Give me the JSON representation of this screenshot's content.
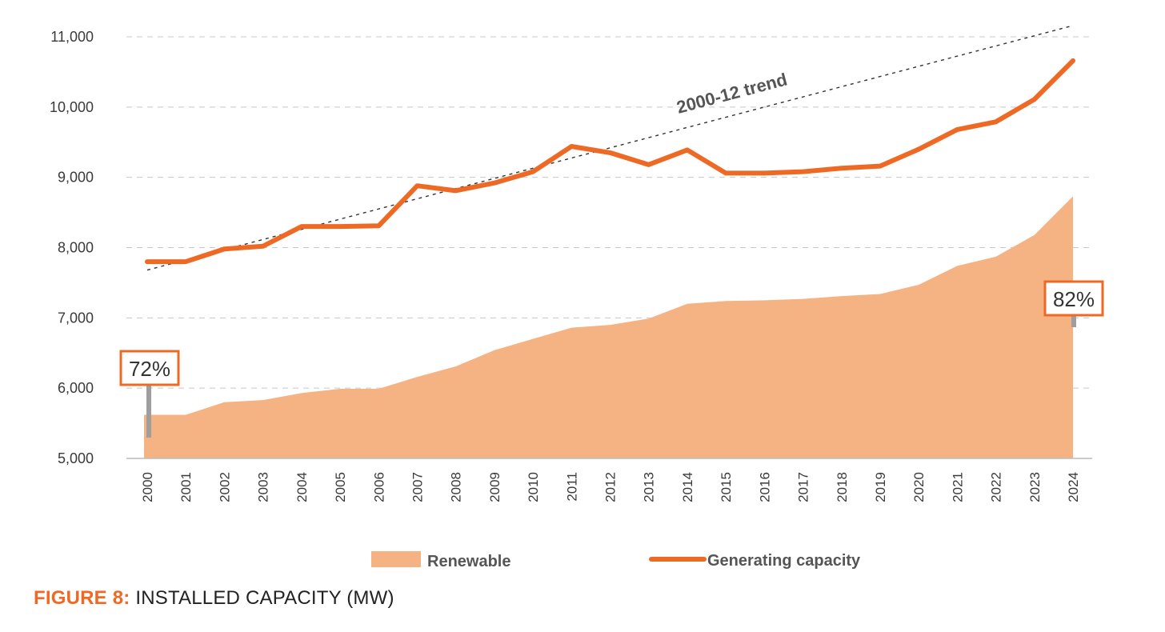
{
  "colors": {
    "accent": "#ee6a24",
    "renewable_fill": "#f5b283",
    "grid": "#c8c8c8",
    "trend": "#333333",
    "marker": "#9e9e9e"
  },
  "caption": {
    "prefix": "FIGURE 8:",
    "text": "INSTALLED CAPACITY (MW)"
  },
  "chart_data": {
    "type": "line",
    "x": [
      2000,
      2001,
      2002,
      2003,
      2004,
      2005,
      2006,
      2007,
      2008,
      2009,
      2010,
      2011,
      2012,
      2013,
      2014,
      2015,
      2016,
      2017,
      2018,
      2019,
      2020,
      2021,
      2022,
      2023,
      2024
    ],
    "x_tick_labels": [
      "2000",
      "2001",
      "2002",
      "2003",
      "2004",
      "2005",
      "2006",
      "2007",
      "2008",
      "2009",
      "2010",
      "2011",
      "2012",
      "2013",
      "2014",
      "2015",
      "2016",
      "2017",
      "2018",
      "2019",
      "2020",
      "2021",
      "2022",
      "2023",
      "2024"
    ],
    "ylim": [
      5000,
      11000
    ],
    "y_ticks": [
      5000,
      6000,
      7000,
      8000,
      9000,
      10000,
      11000
    ],
    "y_tick_labels": [
      "5,000",
      "6,000",
      "7,000",
      "8,000",
      "9,000",
      "10,000",
      "11,000"
    ],
    "grid": "horizontal dashed",
    "legend_placement": "bottom",
    "series": [
      {
        "name": "Renewable",
        "type": "area",
        "values": [
          5620,
          5620,
          5800,
          5830,
          5930,
          5990,
          5990,
          6160,
          6310,
          6540,
          6700,
          6860,
          6900,
          6990,
          7200,
          7240,
          7250,
          7270,
          7310,
          7340,
          7470,
          7740,
          7870,
          8180,
          8730
        ]
      },
      {
        "name": "Generating capacity",
        "type": "line",
        "values": [
          7800,
          7800,
          7980,
          8020,
          8300,
          8300,
          8310,
          8880,
          8810,
          8920,
          9080,
          9440,
          9350,
          9180,
          9390,
          9060,
          9060,
          9080,
          9130,
          9160,
          9400,
          9680,
          9790,
          10110,
          10660
        ]
      }
    ],
    "trend_line": {
      "label": "2000-12 trend",
      "x": [
        2000,
        2024
      ],
      "y": [
        7680,
        11160
      ]
    },
    "annotations": [
      {
        "text": "72%",
        "x": 2000
      },
      {
        "text": "82%",
        "x": 2024
      }
    ]
  }
}
